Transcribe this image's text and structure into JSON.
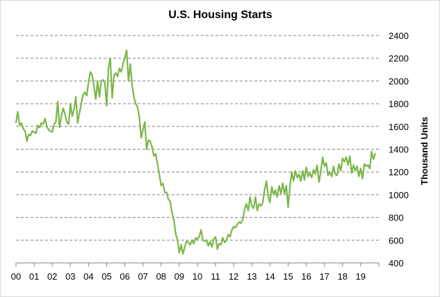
{
  "chart_data": {
    "type": "line",
    "title": "U.S. Housing Starts",
    "xlabel": "",
    "ylabel": "Thousand Units",
    "x_tick_labels": [
      "00",
      "01",
      "02",
      "03",
      "04",
      "05",
      "06",
      "07",
      "08",
      "09",
      "10",
      "11",
      "12",
      "13",
      "14",
      "15",
      "16",
      "17",
      "18",
      "19"
    ],
    "y_ticks": [
      400,
      600,
      800,
      1000,
      1200,
      1400,
      1600,
      1800,
      2000,
      2200,
      2400
    ],
    "ylim": [
      400,
      2400
    ],
    "xlim": [
      2000,
      2020
    ],
    "y_axis_side": "right",
    "grid": "horizontal dashed",
    "legend": "none",
    "colors": {
      "line": "#7ab648",
      "grid": "#808080",
      "axis": "#808080"
    },
    "series": [
      {
        "values": [
          [
            2000.0,
            1635
          ],
          [
            2000.1,
            1730
          ],
          [
            2000.2,
            1610
          ],
          [
            2000.3,
            1630
          ],
          [
            2000.4,
            1580
          ],
          [
            2000.5,
            1560
          ],
          [
            2000.6,
            1470
          ],
          [
            2000.7,
            1530
          ],
          [
            2000.8,
            1520
          ],
          [
            2000.9,
            1560
          ],
          [
            2001.0,
            1550
          ],
          [
            2001.1,
            1540
          ],
          [
            2001.2,
            1610
          ],
          [
            2001.3,
            1590
          ],
          [
            2001.4,
            1630
          ],
          [
            2001.5,
            1620
          ],
          [
            2001.6,
            1670
          ],
          [
            2001.7,
            1600
          ],
          [
            2001.8,
            1570
          ],
          [
            2001.9,
            1560
          ],
          [
            2002.0,
            1550
          ],
          [
            2002.1,
            1620
          ],
          [
            2002.2,
            1640
          ],
          [
            2002.3,
            1820
          ],
          [
            2002.4,
            1590
          ],
          [
            2002.5,
            1690
          ],
          [
            2002.6,
            1760
          ],
          [
            2002.7,
            1710
          ],
          [
            2002.8,
            1640
          ],
          [
            2002.9,
            1620
          ],
          [
            2003.0,
            1800
          ],
          [
            2003.1,
            1690
          ],
          [
            2003.2,
            1750
          ],
          [
            2003.3,
            1860
          ],
          [
            2003.4,
            1630
          ],
          [
            2003.5,
            1720
          ],
          [
            2003.6,
            1800
          ],
          [
            2003.7,
            1880
          ],
          [
            2003.8,
            1900
          ],
          [
            2003.9,
            1870
          ],
          [
            2004.0,
            1990
          ],
          [
            2004.1,
            2080
          ],
          [
            2004.2,
            2050
          ],
          [
            2004.3,
            1950
          ],
          [
            2004.4,
            1840
          ],
          [
            2004.5,
            2000
          ],
          [
            2004.6,
            1860
          ],
          [
            2004.7,
            2000
          ],
          [
            2004.8,
            2010
          ],
          [
            2004.9,
            1980
          ],
          [
            2005.0,
            1780
          ],
          [
            2005.1,
            2120
          ],
          [
            2005.2,
            2200
          ],
          [
            2005.3,
            1850
          ],
          [
            2005.4,
            2050
          ],
          [
            2005.5,
            2070
          ],
          [
            2005.6,
            2040
          ],
          [
            2005.7,
            2110
          ],
          [
            2005.8,
            2080
          ],
          [
            2005.9,
            2150
          ],
          [
            2006.0,
            2200
          ],
          [
            2006.1,
            2270
          ],
          [
            2006.2,
            2000
          ],
          [
            2006.3,
            2150
          ],
          [
            2006.4,
            1960
          ],
          [
            2006.5,
            1860
          ],
          [
            2006.6,
            1800
          ],
          [
            2006.7,
            1770
          ],
          [
            2006.8,
            1680
          ],
          [
            2006.9,
            1500
          ],
          [
            2007.0,
            1570
          ],
          [
            2007.1,
            1640
          ],
          [
            2007.2,
            1400
          ],
          [
            2007.3,
            1480
          ],
          [
            2007.4,
            1470
          ],
          [
            2007.5,
            1420
          ],
          [
            2007.6,
            1340
          ],
          [
            2007.7,
            1360
          ],
          [
            2007.8,
            1270
          ],
          [
            2007.9,
            1180
          ],
          [
            2008.0,
            1080
          ],
          [
            2008.1,
            1100
          ],
          [
            2008.2,
            1020
          ],
          [
            2008.3,
            1020
          ],
          [
            2008.4,
            960
          ],
          [
            2008.5,
            940
          ],
          [
            2008.6,
            840
          ],
          [
            2008.7,
            780
          ],
          [
            2008.8,
            660
          ],
          [
            2008.9,
            600
          ],
          [
            2009.0,
            490
          ],
          [
            2009.1,
            560
          ],
          [
            2009.2,
            480
          ],
          [
            2009.3,
            540
          ],
          [
            2009.4,
            590
          ],
          [
            2009.5,
            580
          ],
          [
            2009.6,
            560
          ],
          [
            2009.7,
            600
          ],
          [
            2009.8,
            570
          ],
          [
            2009.9,
            620
          ],
          [
            2010.0,
            610
          ],
          [
            2010.1,
            630
          ],
          [
            2010.2,
            690
          ],
          [
            2010.3,
            600
          ],
          [
            2010.4,
            590
          ],
          [
            2010.5,
            600
          ],
          [
            2010.6,
            550
          ],
          [
            2010.7,
            590
          ],
          [
            2010.8,
            540
          ],
          [
            2010.9,
            610
          ],
          [
            2011.0,
            630
          ],
          [
            2011.1,
            520
          ],
          [
            2011.2,
            570
          ],
          [
            2011.3,
            560
          ],
          [
            2011.4,
            620
          ],
          [
            2011.5,
            580
          ],
          [
            2011.6,
            600
          ],
          [
            2011.7,
            650
          ],
          [
            2011.8,
            630
          ],
          [
            2011.9,
            690
          ],
          [
            2012.0,
            720
          ],
          [
            2012.1,
            710
          ],
          [
            2012.2,
            740
          ],
          [
            2012.3,
            760
          ],
          [
            2012.4,
            750
          ],
          [
            2012.5,
            780
          ],
          [
            2012.6,
            870
          ],
          [
            2012.7,
            920
          ],
          [
            2012.8,
            860
          ],
          [
            2012.9,
            980
          ],
          [
            2013.0,
            900
          ],
          [
            2013.1,
            880
          ],
          [
            2013.2,
            980
          ],
          [
            2013.3,
            860
          ],
          [
            2013.4,
            920
          ],
          [
            2013.5,
            900
          ],
          [
            2013.6,
            930
          ],
          [
            2013.7,
            1040
          ],
          [
            2013.8,
            1120
          ],
          [
            2013.9,
            990
          ],
          [
            2014.0,
            930
          ],
          [
            2014.1,
            1070
          ],
          [
            2014.2,
            1000
          ],
          [
            2014.3,
            1040
          ],
          [
            2014.4,
            980
          ],
          [
            2014.5,
            1080
          ],
          [
            2014.6,
            1010
          ],
          [
            2014.7,
            1100
          ],
          [
            2014.8,
            1010
          ],
          [
            2014.9,
            1080
          ],
          [
            2015.0,
            890
          ],
          [
            2015.1,
            1070
          ],
          [
            2015.2,
            1200
          ],
          [
            2015.3,
            1120
          ],
          [
            2015.4,
            1210
          ],
          [
            2015.5,
            1150
          ],
          [
            2015.6,
            1180
          ],
          [
            2015.7,
            1120
          ],
          [
            2015.8,
            1210
          ],
          [
            2015.9,
            1130
          ],
          [
            2016.0,
            1240
          ],
          [
            2016.1,
            1160
          ],
          [
            2016.2,
            1190
          ],
          [
            2016.3,
            1150
          ],
          [
            2016.4,
            1220
          ],
          [
            2016.5,
            1180
          ],
          [
            2016.6,
            1260
          ],
          [
            2016.7,
            1110
          ],
          [
            2016.8,
            1200
          ],
          [
            2016.9,
            1330
          ],
          [
            2017.0,
            1250
          ],
          [
            2017.1,
            1280
          ],
          [
            2017.2,
            1170
          ],
          [
            2017.3,
            1200
          ],
          [
            2017.4,
            1160
          ],
          [
            2017.5,
            1250
          ],
          [
            2017.6,
            1180
          ],
          [
            2017.7,
            1170
          ],
          [
            2017.8,
            1270
          ],
          [
            2017.9,
            1210
          ],
          [
            2018.0,
            1320
          ],
          [
            2018.1,
            1290
          ],
          [
            2018.2,
            1330
          ],
          [
            2018.3,
            1260
          ],
          [
            2018.4,
            1340
          ],
          [
            2018.5,
            1190
          ],
          [
            2018.6,
            1260
          ],
          [
            2018.7,
            1210
          ],
          [
            2018.8,
            1250
          ],
          [
            2018.9,
            1160
          ],
          [
            2019.0,
            1230
          ],
          [
            2019.1,
            1140
          ],
          [
            2019.2,
            1270
          ],
          [
            2019.3,
            1250
          ],
          [
            2019.4,
            1260
          ],
          [
            2019.5,
            1230
          ],
          [
            2019.6,
            1380
          ],
          [
            2019.7,
            1310
          ],
          [
            2019.8,
            1360
          ]
        ]
      }
    ]
  }
}
